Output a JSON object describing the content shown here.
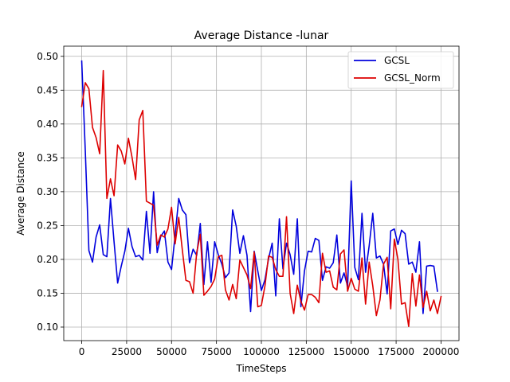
{
  "chart_data": {
    "type": "line",
    "title": "Average Distance -lunar",
    "xlabel": "TimeSteps",
    "ylabel": "Average Distance",
    "xlim": [
      -10000,
      210000
    ],
    "ylim": [
      0.08,
      0.515
    ],
    "grid": true,
    "legend_position": "top-right",
    "xticks": [
      0,
      25000,
      50000,
      75000,
      100000,
      125000,
      150000,
      175000,
      200000
    ],
    "xtick_labels": [
      "0",
      "25000",
      "50000",
      "75000",
      "100000",
      "125000",
      "150000",
      "175000",
      "200000"
    ],
    "yticks": [
      0.1,
      0.15,
      0.2,
      0.25,
      0.3,
      0.35,
      0.4,
      0.45,
      0.5
    ],
    "ytick_labels": [
      "0.10",
      "0.15",
      "0.20",
      "0.25",
      "0.30",
      "0.35",
      "0.40",
      "0.45",
      "0.50"
    ],
    "x_start": 0,
    "x_step": 2000,
    "series": [
      {
        "name": "GCSL",
        "color": "#0000dd",
        "values": [
          0.493,
          0.36,
          0.213,
          0.196,
          0.233,
          0.251,
          0.207,
          0.204,
          0.29,
          0.226,
          0.165,
          0.19,
          0.212,
          0.246,
          0.219,
          0.204,
          0.206,
          0.199,
          0.271,
          0.209,
          0.3,
          0.21,
          0.234,
          0.242,
          0.196,
          0.185,
          0.236,
          0.29,
          0.273,
          0.266,
          0.195,
          0.215,
          0.206,
          0.253,
          0.163,
          0.226,
          0.166,
          0.226,
          0.207,
          0.193,
          0.173,
          0.18,
          0.273,
          0.249,
          0.209,
          0.235,
          0.206,
          0.123,
          0.212,
          0.183,
          0.154,
          0.17,
          0.201,
          0.224,
          0.146,
          0.26,
          0.186,
          0.224,
          0.207,
          0.178,
          0.26,
          0.13,
          0.183,
          0.212,
          0.211,
          0.231,
          0.228,
          0.169,
          0.189,
          0.187,
          0.195,
          0.236,
          0.165,
          0.18,
          0.16,
          0.316,
          0.188,
          0.17,
          0.268,
          0.181,
          0.22,
          0.268,
          0.202,
          0.205,
          0.193,
          0.149,
          0.242,
          0.245,
          0.222,
          0.243,
          0.238,
          0.193,
          0.196,
          0.181,
          0.226,
          0.12,
          0.19,
          0.191,
          0.19,
          0.153
        ]
      },
      {
        "name": "GCSL_Norm",
        "color": "#dd0000",
        "values": [
          0.426,
          0.461,
          0.452,
          0.395,
          0.38,
          0.356,
          0.479,
          0.29,
          0.319,
          0.294,
          0.369,
          0.36,
          0.341,
          0.379,
          0.351,
          0.318,
          0.406,
          0.42,
          0.286,
          0.283,
          0.28,
          0.221,
          0.236,
          0.233,
          0.245,
          0.277,
          0.223,
          0.262,
          0.214,
          0.169,
          0.167,
          0.15,
          0.21,
          0.237,
          0.147,
          0.153,
          0.16,
          0.171,
          0.204,
          0.206,
          0.155,
          0.14,
          0.163,
          0.142,
          0.199,
          0.188,
          0.177,
          0.157,
          0.211,
          0.13,
          0.132,
          0.161,
          0.205,
          0.203,
          0.185,
          0.175,
          0.175,
          0.263,
          0.15,
          0.12,
          0.162,
          0.138,
          0.125,
          0.148,
          0.148,
          0.144,
          0.136,
          0.209,
          0.181,
          0.183,
          0.159,
          0.155,
          0.208,
          0.214,
          0.153,
          0.172,
          0.156,
          0.153,
          0.202,
          0.134,
          0.196,
          0.161,
          0.117,
          0.14,
          0.193,
          0.203,
          0.127,
          0.23,
          0.2,
          0.134,
          0.136,
          0.101,
          0.179,
          0.131,
          0.177,
          0.129,
          0.153,
          0.124,
          0.14,
          0.12,
          0.145
        ]
      }
    ]
  }
}
